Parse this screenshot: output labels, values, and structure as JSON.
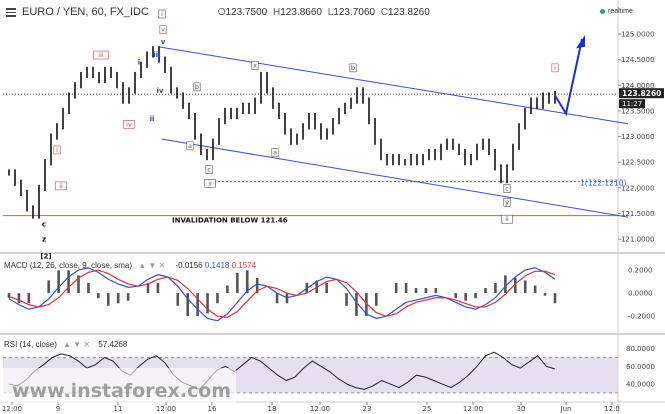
{
  "header": {
    "symbol": "EURO / YEN, 60, FX_IDC",
    "ohlc": [
      "123.7500",
      "123.8660",
      "123.7060",
      "123.8260"
    ],
    "realtime": "realtime"
  },
  "macd_header": {
    "label": "MACD (12, 26, close, 9, close, sma)",
    "values": [
      "-0.0156",
      "0.1418",
      "0.1574"
    ]
  },
  "rsi_header": {
    "label": "RSI (14, close)",
    "value": "57.4268"
  },
  "watermark": "www.instaforex.com",
  "colors": {
    "channel": "#3a4fd6",
    "invalidation": "#e05a5a",
    "macd_line": "#2a55d6",
    "signal_line": "#e0323a",
    "rsi_band": "#e8def0",
    "price_label_bg": "#222222"
  },
  "chart_data": [
    {
      "type": "line",
      "title": "EURO / YEN, 60, FX_IDC",
      "y_ticks": [
        "125.0000",
        "124.5000",
        "124.0000",
        "123.5000",
        "123.0000",
        "122.5000",
        "122.0000",
        "121.5000",
        "121.0000"
      ],
      "x_ticks": [
        "12:00",
        "9",
        "11",
        "12:00",
        "16",
        "18",
        "12:00",
        "23",
        "25",
        "12:00",
        "30",
        "Jun",
        "12:0"
      ],
      "ylim": [
        120.75,
        125.35
      ],
      "current_price": "123.8260",
      "countdown": "11:27",
      "series_close": [
        122.3,
        122.1,
        121.9,
        121.6,
        121.46,
        122.0,
        122.5,
        123.0,
        123.2,
        123.5,
        123.8,
        124.0,
        124.2,
        124.3,
        124.2,
        124.1,
        124.3,
        124.2,
        124.0,
        123.7,
        123.9,
        124.2,
        124.4,
        124.6,
        124.7,
        124.5,
        124.3,
        123.9,
        123.8,
        123.6,
        123.4,
        123.0,
        122.7,
        122.6,
        122.9,
        123.3,
        123.5,
        123.4,
        123.5,
        123.6,
        123.5,
        123.7,
        124.2,
        123.9,
        123.6,
        123.4,
        123.1,
        122.9,
        123.0,
        123.2,
        123.4,
        123.2,
        123.0,
        123.1,
        123.3,
        123.5,
        123.6,
        123.7,
        123.9,
        123.7,
        123.3,
        122.9,
        122.6,
        122.5,
        122.6,
        122.5,
        122.5,
        122.6,
        122.5,
        122.6,
        122.7,
        122.6,
        122.8,
        122.9,
        122.8,
        122.7,
        122.5,
        122.6,
        122.8,
        122.9,
        122.7,
        122.4,
        122.15,
        122.4,
        122.8,
        123.2,
        123.5,
        123.7,
        123.6,
        123.8,
        123.7,
        123.83
      ],
      "annotations": [
        "c",
        "z",
        "[2]",
        "i",
        "ii",
        "iii",
        "iv",
        "v",
        "i",
        "ii",
        "iii",
        "iv",
        "v",
        "a",
        "b",
        "c",
        "ii",
        "a",
        "b",
        "c",
        "x",
        "y",
        "ii",
        "i",
        "1(122.1210)",
        "INVALIDATION BELOW 121.46"
      ],
      "invalidation_level": 121.46,
      "target_level": 122.121
    },
    {
      "type": "line",
      "title": "MACD (12, 26, close, 9, close, sma)",
      "y_ticks": [
        "0.2000",
        "0.0000",
        "-0.2000"
      ],
      "ylim": [
        -0.32,
        0.27
      ],
      "series": [
        {
          "name": "MACD",
          "values": [
            -0.05,
            -0.1,
            -0.14,
            -0.12,
            -0.05,
            0.05,
            0.14,
            0.2,
            0.22,
            0.18,
            0.12,
            0.08,
            0.05,
            0.06,
            0.12,
            0.16,
            0.14,
            0.06,
            -0.05,
            -0.14,
            -0.22,
            -0.24,
            -0.18,
            -0.08,
            0.02,
            0.08,
            0.06,
            0.0,
            -0.04,
            -0.02,
            0.04,
            0.1,
            0.14,
            0.12,
            0.04,
            -0.08,
            -0.18,
            -0.22,
            -0.2,
            -0.14,
            -0.08,
            -0.06,
            -0.04,
            -0.02,
            -0.04,
            -0.08,
            -0.12,
            -0.14,
            -0.1,
            -0.04,
            0.06,
            0.14,
            0.2,
            0.22,
            0.18,
            0.12
          ]
        },
        {
          "name": "Signal",
          "values": [
            -0.03,
            -0.06,
            -0.1,
            -0.12,
            -0.1,
            -0.04,
            0.05,
            0.13,
            0.18,
            0.2,
            0.17,
            0.12,
            0.08,
            0.06,
            0.08,
            0.12,
            0.14,
            0.11,
            0.04,
            -0.05,
            -0.14,
            -0.2,
            -0.21,
            -0.16,
            -0.07,
            0.02,
            0.06,
            0.04,
            0.0,
            -0.02,
            0.0,
            0.05,
            0.1,
            0.12,
            0.09,
            0.01,
            -0.09,
            -0.17,
            -0.2,
            -0.18,
            -0.12,
            -0.08,
            -0.06,
            -0.04,
            -0.04,
            -0.06,
            -0.09,
            -0.12,
            -0.12,
            -0.08,
            -0.01,
            0.08,
            0.15,
            0.19,
            0.19,
            0.16
          ]
        }
      ]
    },
    {
      "type": "line",
      "title": "RSI (14, close)",
      "y_ticks": [
        "80.0000",
        "60.0000",
        "40.0000"
      ],
      "ylim": [
        22,
        92
      ],
      "band": [
        30,
        70
      ],
      "values": [
        40,
        38,
        45,
        55,
        62,
        70,
        74,
        72,
        66,
        58,
        62,
        70,
        66,
        55,
        50,
        60,
        68,
        72,
        64,
        50,
        42,
        38,
        34,
        45,
        56,
        60,
        54,
        62,
        70,
        66,
        58,
        50,
        44,
        48,
        58,
        66,
        60,
        54,
        46,
        40,
        36,
        34,
        38,
        44,
        40,
        36,
        42,
        50,
        48,
        44,
        40,
        36,
        42,
        50,
        60,
        72,
        76,
        70,
        62,
        58,
        65,
        72,
        60,
        57
      ]
    }
  ]
}
